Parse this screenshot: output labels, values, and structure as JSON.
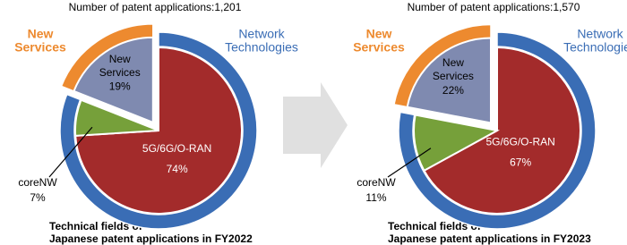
{
  "chart_data": [
    {
      "type": "pie",
      "title": "Number of patent applications:1,201",
      "caption": [
        "Technical fields of",
        "Japanese patent applications in FY2022"
      ],
      "categories": [
        "5G/6G/O-RAN",
        "coreNW",
        "New Services"
      ],
      "values": [
        74,
        7,
        19
      ],
      "value_labels": [
        "74%",
        "7%",
        "19%"
      ],
      "colors": [
        "#a32b2b",
        "#76a03a",
        "#7f8ab0"
      ],
      "explode": [
        false,
        false,
        true
      ],
      "outer_ring": {
        "categories": [
          "Network Technologies",
          "New Services"
        ],
        "values": [
          81,
          19
        ],
        "colors": [
          "#3a6db5",
          "#ed8a2f"
        ],
        "explode": [
          false,
          true
        ]
      }
    },
    {
      "type": "pie",
      "title": "Number of patent applications:1,570",
      "caption": [
        "Technical fields of",
        "Japanese patent applications in FY2023"
      ],
      "categories": [
        "5G/6G/O-RAN",
        "coreNW",
        "New Services"
      ],
      "values": [
        67,
        11,
        22
      ],
      "value_labels": [
        "67%",
        "11%",
        "22%"
      ],
      "colors": [
        "#a32b2b",
        "#76a03a",
        "#7f8ab0"
      ],
      "explode": [
        false,
        false,
        true
      ],
      "outer_ring": {
        "categories": [
          "Network Technologies",
          "New Services"
        ],
        "values": [
          78,
          22
        ],
        "colors": [
          "#3a6db5",
          "#ed8a2f"
        ],
        "explode": [
          false,
          true
        ]
      }
    }
  ]
}
